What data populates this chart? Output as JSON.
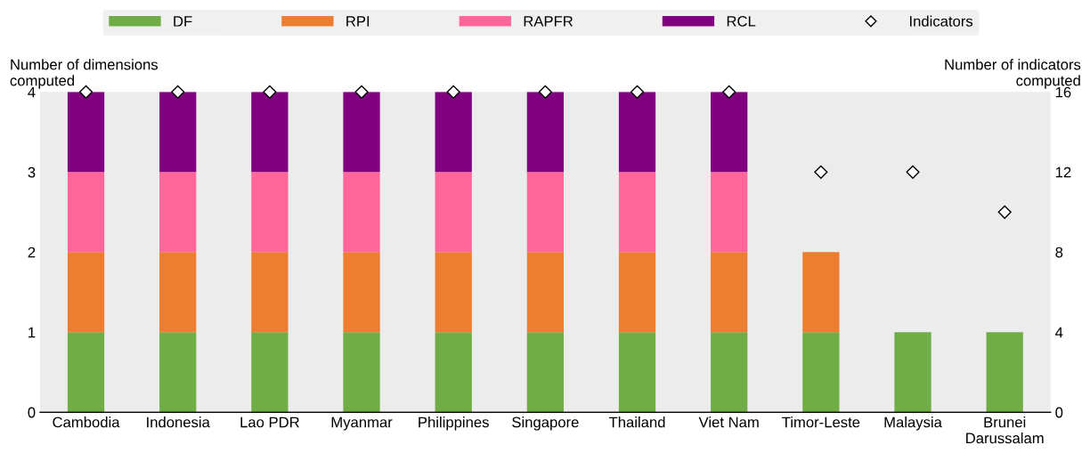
{
  "chart_data": {
    "type": "bar",
    "stacked": true,
    "categories": [
      "Cambodia",
      "Indonesia",
      "Lao PDR",
      "Myanmar",
      "Philippines",
      "Singapore",
      "Thailand",
      "Viet Nam",
      "Timor-Leste",
      "Malaysia",
      "Brunei\nDarussalam"
    ],
    "series": [
      {
        "name": "DF",
        "color": "#70ad47",
        "values": [
          1,
          1,
          1,
          1,
          1,
          1,
          1,
          1,
          1,
          1,
          1
        ]
      },
      {
        "name": "RPI",
        "color": "#ed7d31",
        "values": [
          1,
          1,
          1,
          1,
          1,
          1,
          1,
          1,
          1,
          null,
          null
        ]
      },
      {
        "name": "RAPFR",
        "color": "#ff6699",
        "values": [
          1,
          1,
          1,
          1,
          1,
          1,
          1,
          1,
          null,
          null,
          null
        ]
      },
      {
        "name": "RCL",
        "color": "#800080",
        "values": [
          1,
          1,
          1,
          1,
          1,
          1,
          1,
          1,
          null,
          null,
          null
        ]
      },
      {
        "name": "Indicators",
        "type": "scatter",
        "axis": "y2",
        "color": "#ffffff",
        "marker": "diamond",
        "values": [
          16,
          16,
          16,
          16,
          16,
          16,
          16,
          16,
          12,
          12,
          10
        ]
      }
    ],
    "ylabel": "Number of dimensions\ncomputed",
    "y2label": "Number of indicators\ncomputed",
    "ylim": [
      0,
      4
    ],
    "yticks": [
      0,
      1,
      2,
      3,
      4
    ],
    "y2lim": [
      0,
      16
    ],
    "y2ticks": [
      0,
      4,
      8,
      12,
      16
    ],
    "grid": false,
    "legend": "top"
  }
}
